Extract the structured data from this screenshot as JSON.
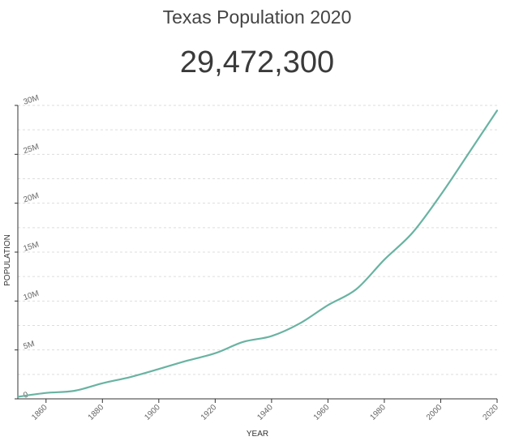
{
  "header": {
    "title": "Texas Population 2020",
    "value": "29,472,300"
  },
  "colors": {
    "line": "#69b3a2",
    "grid": "#dddddd",
    "axis": "#333333"
  },
  "chart_data": {
    "type": "line",
    "title": "Texas Population 2020",
    "xlabel": "YEAR",
    "ylabel": "POPULATION",
    "xlim": [
      1850,
      2020
    ],
    "ylim": [
      0,
      30000000
    ],
    "grid": true,
    "x_ticks": [
      1860,
      1880,
      1900,
      1920,
      1940,
      1960,
      1980,
      2000,
      2020
    ],
    "x_tick_labels": [
      "1860",
      "1880",
      "1900",
      "1920",
      "1940",
      "1960",
      "1980",
      "2000",
      "2020"
    ],
    "y_ticks": [
      0,
      5000000,
      10000000,
      15000000,
      20000000,
      25000000,
      30000000
    ],
    "y_tick_labels": [
      "0",
      "5M",
      "10M",
      "15M",
      "20M",
      "25M",
      "30M"
    ],
    "series": [
      {
        "name": "Population",
        "x": [
          1850,
          1860,
          1870,
          1880,
          1890,
          1900,
          1910,
          1920,
          1930,
          1940,
          1950,
          1960,
          1970,
          1980,
          1990,
          2000,
          2010,
          2020
        ],
        "values": [
          212592,
          604215,
          818579,
          1591749,
          2235527,
          3048710,
          3896542,
          4663228,
          5824715,
          6414824,
          7711194,
          9579677,
          11196730,
          14229191,
          16986510,
          20851820,
          25145561,
          29472300
        ]
      }
    ]
  }
}
